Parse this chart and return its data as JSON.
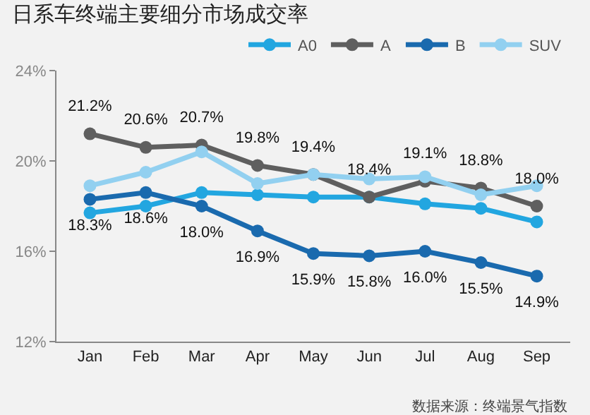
{
  "chart_data": {
    "type": "line",
    "title": "日系车终端主要细分市场成交率",
    "categories": [
      "Jan",
      "Feb",
      "Mar",
      "Apr",
      "May",
      "Jun",
      "Jul",
      "Aug",
      "Sep"
    ],
    "series": [
      {
        "name": "A0",
        "color": "#22a6e0",
        "values": [
          17.7,
          18.0,
          18.6,
          18.5,
          18.4,
          18.4,
          18.1,
          17.9,
          17.3
        ]
      },
      {
        "name": "A",
        "color": "#5f5f5f",
        "values": [
          21.2,
          20.6,
          20.7,
          19.8,
          19.4,
          18.4,
          19.1,
          18.8,
          18.0
        ],
        "value_labels": [
          "21.2%",
          "20.6%",
          "20.7%",
          "19.8%",
          "19.4%",
          "18.4%",
          "19.1%",
          "18.8%",
          "18.0%"
        ]
      },
      {
        "name": "B",
        "color": "#1a6aae",
        "values": [
          18.3,
          18.6,
          18.0,
          16.9,
          15.9,
          15.8,
          16.0,
          15.5,
          14.9
        ],
        "value_labels": [
          "18.3%",
          "18.6%",
          "18.0%",
          "16.9%",
          "15.9%",
          "15.8%",
          "16.0%",
          "15.5%",
          "14.9%"
        ]
      },
      {
        "name": "SUV",
        "color": "#92d0f0",
        "values": [
          18.9,
          19.5,
          20.4,
          19.0,
          19.4,
          19.2,
          19.3,
          18.5,
          18.9
        ]
      }
    ],
    "ylim": [
      12,
      24
    ],
    "yticks": [
      {
        "value": 12,
        "label": "12%"
      },
      {
        "value": 16,
        "label": "16%"
      },
      {
        "value": 20,
        "label": "20%"
      },
      {
        "value": 24,
        "label": "24%"
      }
    ],
    "grid": false,
    "legend": "top right",
    "marker": "circle",
    "line_style": "solid",
    "annotations": [
      "数据来源：终端景气指数"
    ]
  }
}
